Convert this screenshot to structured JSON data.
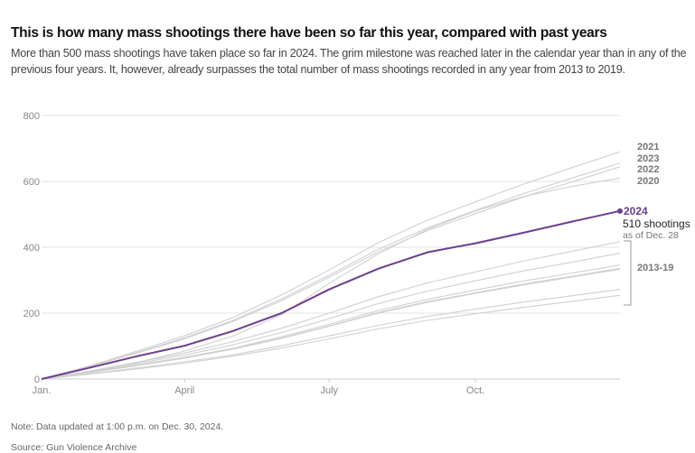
{
  "title": "This is how many mass shootings there have been so far this year, compared with past years",
  "subtitle": "More than 500 mass shootings have taken place so far in 2024. The grim milestone was reached later in the calendar year than in any of the previous four years. It, however, already surpasses the total number of mass shootings recorded in any year from 2013 to 2019.",
  "note": "Note: Data updated at 1:00 p.m. on Dec. 30, 2024.",
  "source": "Source: Gun Violence Archive",
  "colors": {
    "highlight": "#6b3f8f",
    "past": "#d0d0d0",
    "grid": "#e3e3e3"
  },
  "chart_data": {
    "type": "line",
    "x": [
      "Jan. 1",
      "Feb. 1",
      "Mar. 1",
      "Apr. 1",
      "May 1",
      "Jun. 1",
      "Jul. 1",
      "Aug. 1",
      "Sep. 1",
      "Oct. 1",
      "Nov. 1",
      "Dec. 1",
      "Dec. 31"
    ],
    "xticks": [
      "Jan.",
      "April",
      "July",
      "Oct."
    ],
    "ylim": [
      0,
      800
    ],
    "yticks": [
      "0",
      "200",
      "400",
      "600",
      "800"
    ],
    "grid": true,
    "series": [
      {
        "name": "2021",
        "values": [
          0,
          41,
          83,
          131,
          186,
          255,
          331,
          414,
          483,
          538,
          593,
          642,
          690
        ]
      },
      {
        "name": "2023",
        "values": [
          0,
          39,
          79,
          125,
          177,
          243,
          315,
          394,
          459,
          512,
          564,
          610,
          656
        ]
      },
      {
        "name": "2022",
        "values": [
          0,
          39,
          77,
          122,
          174,
          238,
          309,
          386,
          451,
          502,
          554,
          599,
          644
        ]
      },
      {
        "name": "2020",
        "values": [
          0,
          24,
          49,
          85,
          130,
          195,
          290,
          380,
          455,
          510,
          555,
          585,
          610
        ]
      },
      {
        "values": [
          0,
          25,
          50,
          79,
          113,
          154,
          200,
          250,
          292,
          325,
          359,
          388,
          417
        ]
      },
      {
        "values": [
          0,
          23,
          46,
          73,
          103,
          141,
          183,
          229,
          267,
          298,
          329,
          355,
          382
        ]
      },
      {
        "values": [
          0,
          21,
          42,
          66,
          93,
          128,
          166,
          208,
          242,
          270,
          298,
          322,
          346
        ]
      },
      {
        "values": [
          0,
          20,
          40,
          64,
          91,
          124,
          161,
          202,
          235,
          262,
          289,
          312,
          336
        ]
      },
      {
        "values": [
          0,
          20,
          40,
          63,
          90,
          123,
          160,
          200,
          233,
          260,
          286,
          310,
          333
        ]
      },
      {
        "values": [
          0,
          16,
          33,
          52,
          73,
          101,
          131,
          163,
          190,
          212,
          234,
          253,
          272
        ]
      },
      {
        "values": [
          0,
          15,
          30,
          48,
          69,
          94,
          122,
          152,
          178,
          198,
          218,
          236,
          254
        ]
      },
      {
        "name": "2024",
        "values": [
          0,
          35,
          68,
          101,
          145,
          200,
          272,
          335,
          385,
          412,
          445,
          478,
          510
        ],
        "highlight": true
      }
    ],
    "group_label": "2013-19",
    "annotation": {
      "label": "2024",
      "value_text": "510 shootings",
      "date_text": "as of Dec. 28"
    }
  }
}
